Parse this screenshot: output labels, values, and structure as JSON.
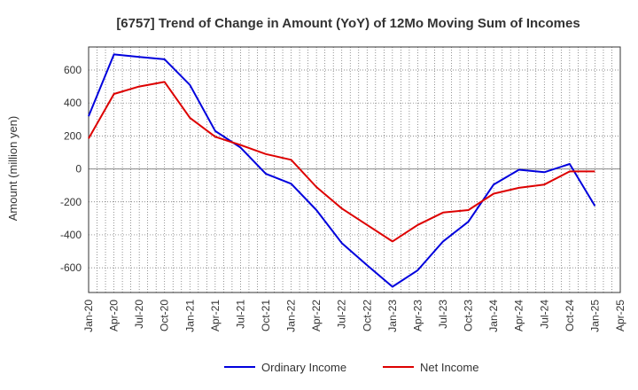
{
  "chart_data": {
    "type": "line",
    "title": "[6757]  Trend of Change in Amount (YoY) of 12Mo Moving Sum of Incomes",
    "xlabel": "",
    "ylabel": "Amount (million yen)",
    "ylim": [
      -750,
      740
    ],
    "yticks": [
      -600,
      -400,
      -200,
      0,
      200,
      400,
      600
    ],
    "grid": true,
    "legend_position": "bottom",
    "categories": [
      "Jan-20",
      "Apr-20",
      "Jul-20",
      "Oct-20",
      "Jan-21",
      "Apr-21",
      "Jul-21",
      "Oct-21",
      "Jan-22",
      "Apr-22",
      "Jul-22",
      "Oct-22",
      "Jan-23",
      "Apr-23",
      "Jul-23",
      "Oct-23",
      "Jan-24",
      "Apr-24",
      "Jul-24",
      "Oct-24",
      "Jan-25",
      "Apr-25"
    ],
    "series": [
      {
        "name": "Ordinary Income",
        "color": "#0000dd",
        "values": [
          320,
          695,
          680,
          665,
          510,
          230,
          130,
          -30,
          -90,
          -250,
          -450,
          -585,
          -715,
          -615,
          -440,
          -320,
          -95,
          -5,
          -20,
          30,
          -225,
          null
        ]
      },
      {
        "name": "Net Income",
        "color": "#dd0000",
        "values": [
          185,
          455,
          500,
          528,
          310,
          195,
          145,
          90,
          55,
          -110,
          -240,
          -340,
          -440,
          -340,
          -265,
          -250,
          -150,
          -115,
          -95,
          -15,
          -15,
          null
        ]
      }
    ]
  }
}
